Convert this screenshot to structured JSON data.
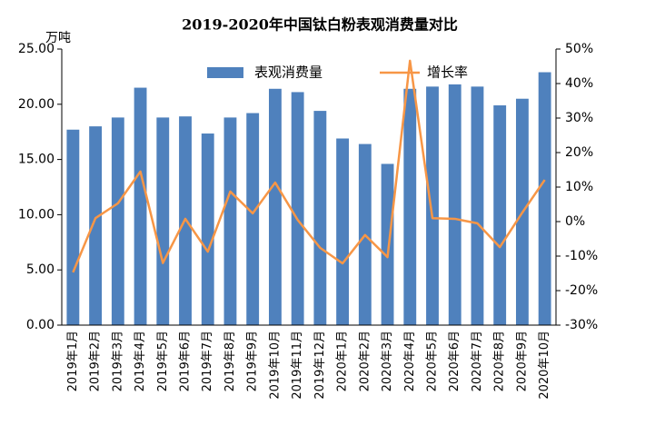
{
  "chart_data": {
    "type": "bar-line",
    "title": "2019-2020年中国钛白粉表观消费量对比",
    "y_label": "万吨",
    "categories": [
      "2019年1月",
      "2019年2月",
      "2019年3月",
      "2019年4月",
      "2019年5月",
      "2019年6月",
      "2019年7月",
      "2019年8月",
      "2019年9月",
      "2019年10月",
      "2019年11月",
      "2019年12月",
      "2020年1月",
      "2020年2月",
      "2020年3月",
      "2020年4月",
      "2020年5月",
      "2020年6月",
      "2020年7月",
      "2020年8月",
      "2020年9月",
      "2020年10月"
    ],
    "series": [
      {
        "name": "表观消费量",
        "color": "#4f81bd",
        "type": "bar",
        "axis": "y",
        "values": [
          17.7,
          18.0,
          18.8,
          21.5,
          18.8,
          18.9,
          17.35,
          18.8,
          19.2,
          21.4,
          21.1,
          19.4,
          16.9,
          16.4,
          14.6,
          21.4,
          21.6,
          21.8,
          21.6,
          19.9,
          20.5,
          22.9
        ]
      },
      {
        "name": "增长率",
        "color": "#f79646",
        "type": "line",
        "axis": "y2",
        "values": [
          -14.7,
          1,
          5.3,
          14.5,
          -12,
          0.8,
          -8.7,
          8.7,
          2.4,
          11.3,
          0.5,
          -7.6,
          -12.1,
          -3.9,
          -10.3,
          46.6,
          1,
          0.8,
          -0.5,
          -7.4,
          2.6,
          12.1
        ]
      }
    ],
    "ylim": [
      0,
      25
    ],
    "yticks": [
      {
        "value": 0,
        "label": "0.00"
      },
      {
        "value": 5,
        "label": "5.00"
      },
      {
        "value": 10,
        "label": "10.00"
      },
      {
        "value": 15,
        "label": "15.00"
      },
      {
        "value": 20,
        "label": "20.00"
      },
      {
        "value": 25,
        "label": "25.00"
      }
    ],
    "y2lim": [
      -30,
      50
    ],
    "y2ticks": [
      {
        "value": -30,
        "label": "-30%"
      },
      {
        "value": -20,
        "label": "-20%"
      },
      {
        "value": -10,
        "label": "-10%"
      },
      {
        "value": 0,
        "label": "0%"
      },
      {
        "value": 10,
        "label": "10%"
      },
      {
        "value": 20,
        "label": "20%"
      },
      {
        "value": 30,
        "label": "30%"
      },
      {
        "value": 40,
        "label": "40%"
      },
      {
        "value": 50,
        "label": "50%"
      }
    ],
    "legend": "top"
  }
}
